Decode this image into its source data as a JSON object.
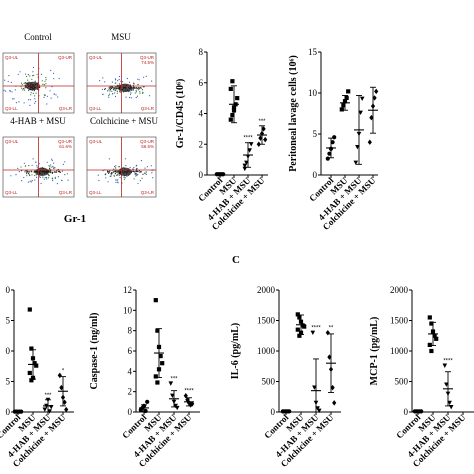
{
  "figure": {
    "flow_panels": [
      {
        "title": "Control",
        "quadrants": {
          "ul": "Q3-UL",
          "ur": "Q3-UR",
          "ll": "Q3-LL",
          "lr": "Q3-LR"
        },
        "ur_value": "",
        "lr_value": "",
        "ul_value": "",
        "ll_value": ""
      },
      {
        "title": "MSU",
        "quadrants": {
          "ul": "Q3-UL",
          "ur": "Q3-UR",
          "ll": "Q3-LL",
          "lr": "Q3-LR"
        },
        "ur_value": "74.5%",
        "lr_value": "",
        "ul_value": "",
        "ll_value": ""
      },
      {
        "title": "4-HAB + MSU",
        "quadrants": {
          "ul": "Q3-UL",
          "ur": "Q3-UR",
          "ll": "Q3-LL",
          "lr": "Q3-LR"
        },
        "ur_value": "61.6%",
        "lr_value": "",
        "ul_value": "",
        "ll_value": ""
      },
      {
        "title": "Colchicine + MSU",
        "quadrants": {
          "ul": "Q3-UL",
          "ur": "Q3-UR",
          "ll": "Q3-LL",
          "lr": "Q3-LR"
        },
        "ur_value": "56.5%",
        "lr_value": "",
        "ul_value": "",
        "ll_value": ""
      }
    ],
    "flow_xlabel": "Gr-1",
    "panel_letter_c": "C",
    "icons": {
      "flow_density": "density-plot-icon"
    },
    "colors": {
      "quadrant_line": "#c02020",
      "marker": "#000000"
    }
  },
  "chart_data": [
    {
      "type": "scatter",
      "ylabel": "Gr-1/CD45 (10⁶)",
      "categories": [
        "Control",
        "MSU",
        "4-HAB + MSU",
        "Colchicine + MSU"
      ],
      "markers": [
        "circle",
        "square",
        "triangle-down",
        "diamond"
      ],
      "ylim": [
        0,
        8
      ],
      "yticks": [
        "0",
        "2",
        "4",
        "6",
        "8"
      ],
      "means": [
        0.05,
        4.6,
        1.3,
        2.6
      ],
      "sd": [
        0.05,
        1.2,
        0.8,
        0.6
      ],
      "points": [
        [
          0.05,
          0.05,
          0.05,
          0.05,
          0.05
        ],
        [
          3.6,
          3.9,
          4.2,
          4.6,
          5.0,
          5.6,
          6.1,
          4.4
        ],
        [
          0.4,
          0.8,
          1.2,
          1.6,
          2.0,
          0.6
        ],
        [
          2.0,
          2.4,
          2.7,
          3.0,
          2.3
        ]
      ],
      "annotations": [
        "",
        "",
        "****",
        "***"
      ]
    },
    {
      "type": "scatter",
      "ylabel": "Peritoneal lavage cells (10⁶)",
      "categories": [
        "Control",
        "MSU",
        "4-HAB + MSU",
        "Colchicine + MSU"
      ],
      "markers": [
        "circle",
        "square",
        "triangle-down",
        "diamond"
      ],
      "ylim": [
        0,
        15
      ],
      "yticks": [
        "0",
        "5",
        "10",
        "15"
      ],
      "means": [
        3.3,
        8.8,
        5.5,
        7.9
      ],
      "sd": [
        1.2,
        0.9,
        4.2,
        2.8
      ],
      "points": [
        [
          2.0,
          2.6,
          3.2,
          4.0,
          4.6
        ],
        [
          8.0,
          8.5,
          9.0,
          9.4,
          10.2
        ],
        [
          1.5,
          3.4,
          5.0,
          7.6,
          9.3
        ],
        [
          4.0,
          7.0,
          8.4,
          9.4,
          10.2
        ]
      ],
      "annotations": [
        "",
        "",
        "",
        ""
      ]
    },
    {
      "type": "scatter",
      "ylabel": "",
      "categories": [
        "Control",
        "MSU",
        "4-HAB + MSU",
        "Colchicine + MSU"
      ],
      "markers": [
        "circle",
        "square",
        "triangle-down",
        "diamond"
      ],
      "ylim": [
        0,
        100
      ],
      "yticks": [
        "0",
        "25",
        "50",
        "75",
        "100"
      ],
      "ytick_labels_visible": [
        "0",
        "5",
        "0",
        "5",
        "0"
      ],
      "means": [
        0.3,
        39,
        5,
        17
      ],
      "sd": [
        0.3,
        12,
        5,
        12
      ],
      "points": [
        [
          0.3,
          0.3,
          0.3,
          0.3,
          0.3
        ],
        [
          84,
          52,
          44,
          40,
          38,
          32,
          26,
          28
        ],
        [
          2,
          5,
          10,
          0.5,
          4
        ],
        [
          30,
          20,
          12,
          8,
          2
        ]
      ],
      "annotations": [
        "",
        "",
        "***",
        "*"
      ]
    },
    {
      "type": "scatter",
      "ylabel": "Caspase-1 (ng/ml)",
      "categories": [
        "Control",
        "MSU",
        "4-HAB + MSU",
        "Colchicine + MSU"
      ],
      "markers": [
        "circle",
        "square",
        "triangle-down",
        "diamond"
      ],
      "ylim": [
        0,
        12
      ],
      "yticks": [
        "0",
        "2",
        "4",
        "6",
        "8",
        "10",
        "12"
      ],
      "means": [
        0.4,
        5.8,
        1.3,
        1.0
      ],
      "sd": [
        0.3,
        2.4,
        0.8,
        0.4
      ],
      "points": [
        [
          0.2,
          0.4,
          0.6,
          0.1,
          1.0
        ],
        [
          11.0,
          8.0,
          6.4,
          5.5,
          4.8,
          3.5,
          2.9,
          4.2
        ],
        [
          2.8,
          1.6,
          1.0,
          0.6,
          0.4
        ],
        [
          1.6,
          1.2,
          0.9,
          0.7,
          0.8
        ]
      ],
      "annotations": [
        "",
        "",
        "***",
        "****"
      ]
    },
    {
      "type": "scatter",
      "ylabel": "IL-6 (pg/mL)",
      "categories": [
        "Control",
        "MSU",
        "4-HAB + MSU",
        "Colchicine + MSU"
      ],
      "markers": [
        "circle",
        "square",
        "triangle-down",
        "diamond"
      ],
      "ylim": [
        0,
        2000
      ],
      "yticks": [
        "0",
        "500",
        "1000",
        "1500",
        "2000"
      ],
      "means": [
        10,
        1430,
        350,
        800
      ],
      "sd": [
        10,
        160,
        520,
        480
      ],
      "points": [
        [
          10,
          10,
          10,
          10,
          10
        ],
        [
          1600,
          1550,
          1480,
          1420,
          1400,
          1350,
          1250,
          1300
        ],
        [
          1300,
          400,
          150,
          60,
          20
        ],
        [
          1300,
          900,
          700,
          400,
          150
        ]
      ],
      "annotations": [
        "",
        "",
        "****",
        "**"
      ]
    },
    {
      "type": "scatter",
      "ylabel": "MCP-1 (pg/mL)",
      "categories": [
        "Control",
        "MSU",
        "4-HAB + MSU",
        "Colchicine + MSU"
      ],
      "markers": [
        "circle",
        "square",
        "triangle-down",
        "diamond"
      ],
      "ylim": [
        0,
        2000
      ],
      "yticks": [
        "0",
        "500",
        "1000",
        "1500",
        "2000"
      ],
      "means": [
        10,
        1280,
        380,
        0
      ],
      "sd": [
        10,
        190,
        280,
        0
      ],
      "points": [
        [
          10,
          10,
          10,
          10,
          10
        ],
        [
          1550,
          1450,
          1320,
          1250,
          1200,
          1100,
          1000
        ],
        [
          760,
          450,
          300,
          150,
          80
        ],
        []
      ],
      "annotations": [
        "",
        "",
        "****",
        ""
      ]
    }
  ]
}
